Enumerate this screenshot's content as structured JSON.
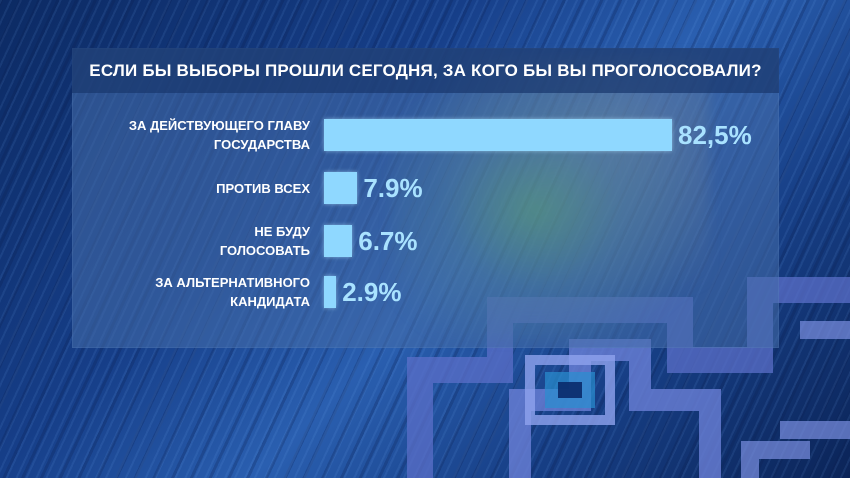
{
  "chart_data": {
    "type": "bar",
    "orientation": "horizontal",
    "title": "ЕСЛИ БЫ ВЫБОРЫ ПРОШЛИ СЕГОДНЯ, ЗА КОГО БЫ ВЫ ПРОГОЛОСОВАЛИ?",
    "categories": [
      "ЗА ДЕЙСТВУЮЩЕГО ГЛАВУ\nГОСУДАРСТВА",
      "ПРОТИВ ВСЕХ",
      "НЕ БУДУ\nГОЛОСОВАТЬ",
      "ЗА АЛЬТЕРНАТИВНОГО\nКАНДИДАТА"
    ],
    "values": [
      82.5,
      7.9,
      6.7,
      2.9
    ],
    "value_labels": [
      "82,5%",
      "7.9%",
      "6.7%",
      "2.9%"
    ],
    "unit": "%",
    "xlim": [
      0,
      82.5
    ],
    "bar_color": "#8fd8ff",
    "value_color": "#a9e2ff"
  }
}
